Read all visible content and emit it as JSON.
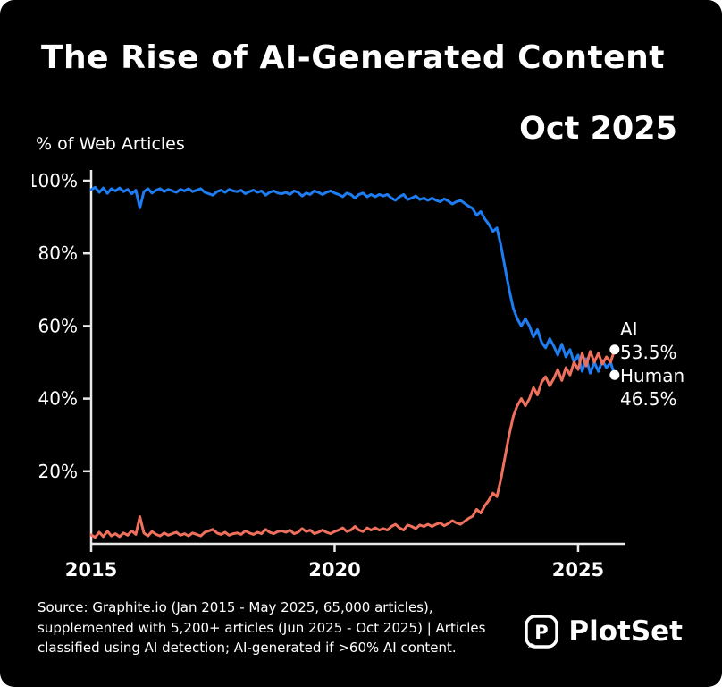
{
  "header": {
    "title": "The Rise of AI-Generated Content",
    "date_label": "Oct 2025",
    "ylabel": "% of Web Articles"
  },
  "chart_data": {
    "type": "line",
    "title": "The Rise of AI-Generated Content",
    "subtitle": "Oct 2025",
    "ylabel": "% of Web Articles",
    "xlim": [
      2015,
      2025.9
    ],
    "ylim": [
      0,
      100
    ],
    "grid": false,
    "legend_position": "right-end-labels",
    "x_start": 2015,
    "x_step": 0.0833333,
    "x_ticks": [
      "2015",
      "2020",
      "2025"
    ],
    "x_tick_years": [
      2015,
      2020,
      2025
    ],
    "y_ticks": [
      20,
      40,
      60,
      80,
      100
    ],
    "y_tick_suffix": "%",
    "series": [
      {
        "name": "Human",
        "color": "#1e7df2",
        "end_label": "Human",
        "end_value": "46.5%",
        "values": [
          97.5,
          98.2,
          96.8,
          98.0,
          96.5,
          97.8,
          97.2,
          98.0,
          97.0,
          97.6,
          96.4,
          97.4,
          92.5,
          97.0,
          97.8,
          96.6,
          97.4,
          97.8,
          97.0,
          97.6,
          97.2,
          96.8,
          97.6,
          97.2,
          97.8,
          97.0,
          97.4,
          97.8,
          96.8,
          96.4,
          96.0,
          97.0,
          97.4,
          96.8,
          97.6,
          97.2,
          97.0,
          97.4,
          96.4,
          97.0,
          97.4,
          96.8,
          97.2,
          96.0,
          96.8,
          97.2,
          96.6,
          96.4,
          96.8,
          96.2,
          97.2,
          96.8,
          95.8,
          96.6,
          96.2,
          97.2,
          96.8,
          96.2,
          96.8,
          97.2,
          96.6,
          96.2,
          95.6,
          96.6,
          96.2,
          95.2,
          96.2,
          96.6,
          95.6,
          96.2,
          95.6,
          96.2,
          95.8,
          96.2,
          95.2,
          94.6,
          95.6,
          96.2,
          94.8,
          95.2,
          95.8,
          94.8,
          95.2,
          94.6,
          95.2,
          94.6,
          94.2,
          95.0,
          94.4,
          93.6,
          94.2,
          94.6,
          93.8,
          93.0,
          92.4,
          90.5,
          91.5,
          89.5,
          88.0,
          86.0,
          87.0,
          82.0,
          76.0,
          70.0,
          65.0,
          62.0,
          60.0,
          62.0,
          60.0,
          57.0,
          59.0,
          55.5,
          54.0,
          56.5,
          54.5,
          52.0,
          55.0,
          51.5,
          53.5,
          50.0,
          52.0,
          47.5,
          51.0,
          47.0,
          50.0,
          47.5,
          50.5,
          48.5,
          50.0,
          46.5
        ]
      },
      {
        "name": "AI",
        "color": "#f0705e",
        "end_label": "AI",
        "end_value": "53.5%",
        "values": [
          2.5,
          1.8,
          3.2,
          2.0,
          3.5,
          2.2,
          2.8,
          2.0,
          3.0,
          2.4,
          3.6,
          2.6,
          7.5,
          3.0,
          2.2,
          3.4,
          2.6,
          2.2,
          3.0,
          2.4,
          2.8,
          3.2,
          2.4,
          2.8,
          2.2,
          3.0,
          2.6,
          2.2,
          3.2,
          3.6,
          4.0,
          3.0,
          2.6,
          3.2,
          2.4,
          2.8,
          3.0,
          2.6,
          3.6,
          3.0,
          2.6,
          3.2,
          2.8,
          4.0,
          3.2,
          2.8,
          3.4,
          3.6,
          3.2,
          3.8,
          2.8,
          3.2,
          4.2,
          3.4,
          3.8,
          2.8,
          3.2,
          3.8,
          3.2,
          2.8,
          3.4,
          3.8,
          4.4,
          3.4,
          3.8,
          4.8,
          3.8,
          3.4,
          4.4,
          3.8,
          4.4,
          3.8,
          4.2,
          3.8,
          4.8,
          5.4,
          4.4,
          3.8,
          5.2,
          4.8,
          4.2,
          5.2,
          4.8,
          5.4,
          4.8,
          5.4,
          5.8,
          5.0,
          5.6,
          6.4,
          5.8,
          5.4,
          6.2,
          7.0,
          7.6,
          9.5,
          8.5,
          10.5,
          12.0,
          14.0,
          13.0,
          18.0,
          24.0,
          30.0,
          35.0,
          38.0,
          40.0,
          38.0,
          40.0,
          43.0,
          41.0,
          44.5,
          46.0,
          43.5,
          45.5,
          48.0,
          45.0,
          48.5,
          46.5,
          50.0,
          48.0,
          52.5,
          49.0,
          53.0,
          50.0,
          52.5,
          49.5,
          51.5,
          50.0,
          53.5
        ]
      }
    ]
  },
  "annotations": {
    "ai_label": "AI",
    "ai_value": "53.5%",
    "human_label": "Human",
    "human_value": "46.5%"
  },
  "footer": {
    "source_lines": [
      "Source: Graphite.io (Jan 2015 - May 2025, 65,000 articles),",
      "supplemented with 5,200+ articles (Jun 2025 - Oct 2025) | Articles",
      "classified using AI detection; AI-generated if >60% AI content."
    ],
    "brand": "PlotSet"
  },
  "colors": {
    "background": "#000000",
    "axis": "#e9e9e9",
    "text": "#ffffff",
    "human_line": "#1e7df2",
    "ai_line": "#f0705e",
    "marker": "#ffffff"
  }
}
